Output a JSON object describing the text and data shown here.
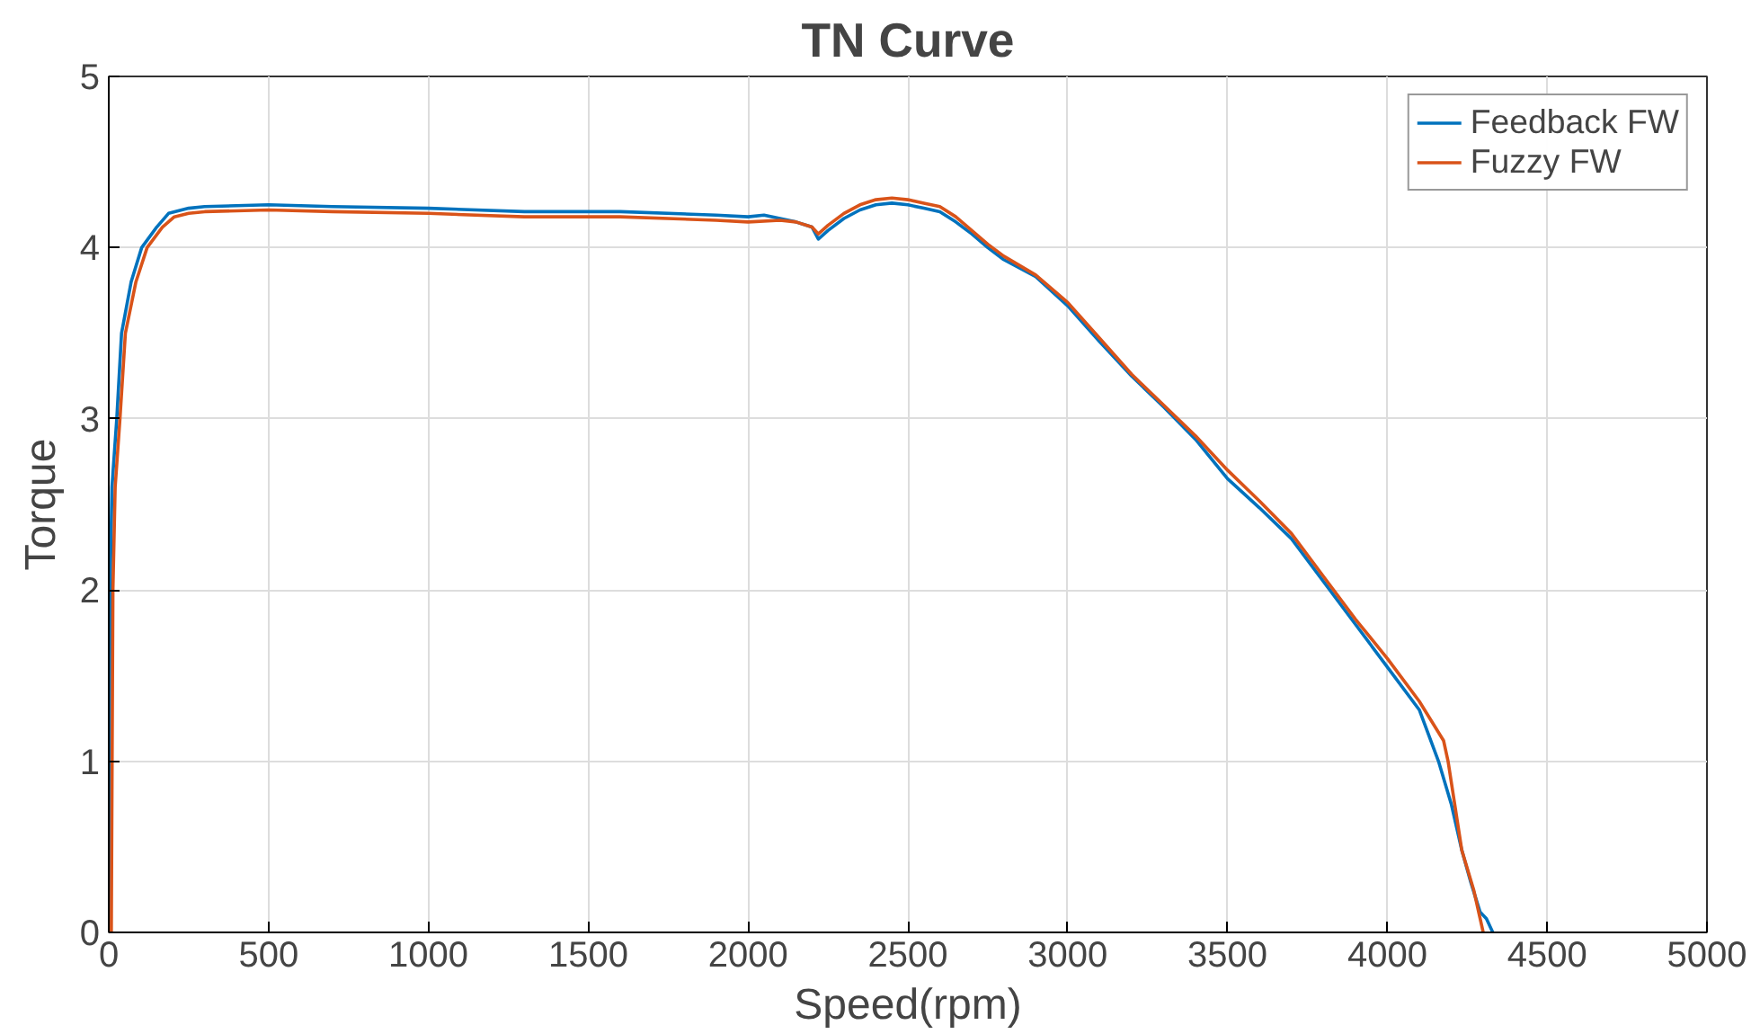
{
  "chart_data": {
    "type": "line",
    "title": "TN Curve",
    "xlabel": "Speed(rpm)",
    "ylabel": "Torque",
    "xlim": [
      0,
      5000
    ],
    "xticks": [
      0,
      500,
      1000,
      1500,
      2000,
      2500,
      3000,
      3500,
      4000,
      4500,
      5000
    ],
    "ylim": [
      0,
      5
    ],
    "yticks": [
      0,
      1,
      2,
      3,
      4,
      5
    ],
    "grid": true,
    "legend": "top right",
    "series": [
      {
        "name": "Feedback FW",
        "color": "#0072bd",
        "x": [
          0,
          4,
          10,
          25,
          40,
          70,
          103,
          150,
          187,
          250,
          300,
          500,
          700,
          1000,
          1300,
          1600,
          1900,
          2000,
          2050,
          2100,
          2150,
          2200,
          2220,
          2250,
          2300,
          2350,
          2400,
          2450,
          2500,
          2550,
          2600,
          2650,
          2700,
          2750,
          2800,
          2900,
          3000,
          3100,
          3200,
          3300,
          3400,
          3500,
          3600,
          3700,
          3800,
          3900,
          4000,
          4100,
          4160,
          4200,
          4233,
          4260,
          4290,
          4310,
          4330
        ],
        "values": [
          0,
          2.0,
          2.6,
          3.0,
          3.5,
          3.8,
          4.0,
          4.12,
          4.2,
          4.23,
          4.24,
          4.25,
          4.24,
          4.23,
          4.21,
          4.21,
          4.19,
          4.18,
          4.19,
          4.17,
          4.15,
          4.12,
          4.05,
          4.1,
          4.17,
          4.22,
          4.25,
          4.26,
          4.25,
          4.23,
          4.21,
          4.15,
          4.08,
          4.0,
          3.93,
          3.83,
          3.66,
          3.45,
          3.25,
          3.07,
          2.88,
          2.65,
          2.48,
          2.3,
          2.05,
          1.8,
          1.55,
          1.3,
          1.0,
          0.75,
          0.48,
          0.3,
          0.12,
          0.08,
          0.0
        ]
      },
      {
        "name": "Fuzzy FW",
        "color": "#d95319",
        "x": [
          8,
          13,
          20,
          35,
          52,
          85,
          120,
          168,
          205,
          250,
          300,
          500,
          700,
          1000,
          1300,
          1600,
          1900,
          2000,
          2100,
          2150,
          2200,
          2220,
          2250,
          2300,
          2350,
          2400,
          2450,
          2500,
          2550,
          2600,
          2650,
          2700,
          2750,
          2800,
          2900,
          3000,
          3100,
          3200,
          3300,
          3400,
          3500,
          3600,
          3700,
          3800,
          3900,
          4000,
          4100,
          4176,
          4190,
          4233,
          4270,
          4300
        ],
        "values": [
          0,
          2.0,
          2.6,
          3.0,
          3.5,
          3.8,
          4.0,
          4.12,
          4.18,
          4.2,
          4.21,
          4.22,
          4.21,
          4.2,
          4.18,
          4.18,
          4.16,
          4.15,
          4.16,
          4.15,
          4.12,
          4.08,
          4.13,
          4.2,
          4.25,
          4.28,
          4.29,
          4.28,
          4.26,
          4.24,
          4.18,
          4.1,
          4.02,
          3.95,
          3.84,
          3.68,
          3.47,
          3.26,
          3.08,
          2.9,
          2.7,
          2.52,
          2.33,
          2.08,
          1.83,
          1.6,
          1.35,
          1.12,
          1.0,
          0.48,
          0.25,
          0.0
        ]
      }
    ]
  }
}
